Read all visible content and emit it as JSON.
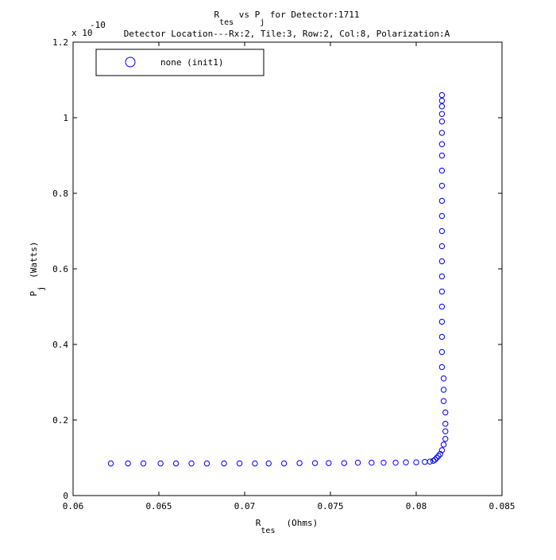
{
  "chart_data": {
    "type": "scatter",
    "title": {
      "line1": {
        "r": "R",
        "r_sub": "tes",
        "mid": " vs P",
        "p_sub": "j",
        "rest": " for Detector:1711"
      },
      "line2": "Detector Location---Rx:2, Tile:3, Row:2, Col:8, Polarization:A"
    },
    "xlabel": {
      "main": "R",
      "sub": "tes",
      "unit": "(Ohms)"
    },
    "ylabel": {
      "main": "P",
      "sub": "j",
      "unit": "(Watts)"
    },
    "y_exponent": {
      "base": "x 10",
      "power": "-10"
    },
    "xlim": [
      0.06,
      0.085
    ],
    "ylim": [
      0,
      1.2
    ],
    "x_ticks": [
      0.06,
      0.065,
      0.07,
      0.075,
      0.08,
      0.085
    ],
    "x_tick_labels": [
      "0.06",
      "0.065",
      "0.07",
      "0.075",
      "0.08",
      "0.085"
    ],
    "y_ticks": [
      0,
      0.2,
      0.4,
      0.6,
      0.8,
      1.0,
      1.2
    ],
    "y_tick_labels": [
      "0",
      "0.2",
      "0.4",
      "0.6",
      "0.8",
      "1",
      "1.2"
    ],
    "grid": false,
    "legend": {
      "position": "top-left",
      "entries": [
        "none (init1)"
      ]
    },
    "series": [
      {
        "name": "none (init1)",
        "color": "#0000ff",
        "marker": "circle",
        "x": [
          0.0622,
          0.0632,
          0.0641,
          0.0651,
          0.066,
          0.0669,
          0.0678,
          0.0688,
          0.0697,
          0.0706,
          0.0714,
          0.0723,
          0.0732,
          0.0741,
          0.0749,
          0.0758,
          0.0766,
          0.0774,
          0.0781,
          0.0788,
          0.0794,
          0.08,
          0.0805,
          0.0808,
          0.081,
          0.0811,
          0.0812,
          0.0813,
          0.0814,
          0.0815,
          0.0816,
          0.0817,
          0.0817,
          0.0817,
          0.0817,
          0.0816,
          0.0816,
          0.0816,
          0.0815,
          0.0815,
          0.0815,
          0.0815,
          0.0815,
          0.0815,
          0.0815,
          0.0815,
          0.0815,
          0.0815,
          0.0815,
          0.0815,
          0.0815,
          0.0815,
          0.0815,
          0.0815,
          0.0815,
          0.0815,
          0.0815,
          0.0815,
          0.0815,
          0.0815
        ],
        "y": [
          0.085,
          0.085,
          0.085,
          0.085,
          0.085,
          0.085,
          0.085,
          0.085,
          0.085,
          0.085,
          0.085,
          0.085,
          0.086,
          0.086,
          0.086,
          0.086,
          0.087,
          0.087,
          0.087,
          0.087,
          0.088,
          0.088,
          0.089,
          0.09,
          0.092,
          0.095,
          0.1,
          0.105,
          0.11,
          0.12,
          0.135,
          0.15,
          0.17,
          0.19,
          0.22,
          0.25,
          0.28,
          0.31,
          0.34,
          0.38,
          0.42,
          0.46,
          0.5,
          0.54,
          0.58,
          0.62,
          0.66,
          0.7,
          0.74,
          0.78,
          0.82,
          0.86,
          0.9,
          0.93,
          0.96,
          0.99,
          1.01,
          1.03,
          1.045,
          1.06
        ]
      }
    ]
  }
}
